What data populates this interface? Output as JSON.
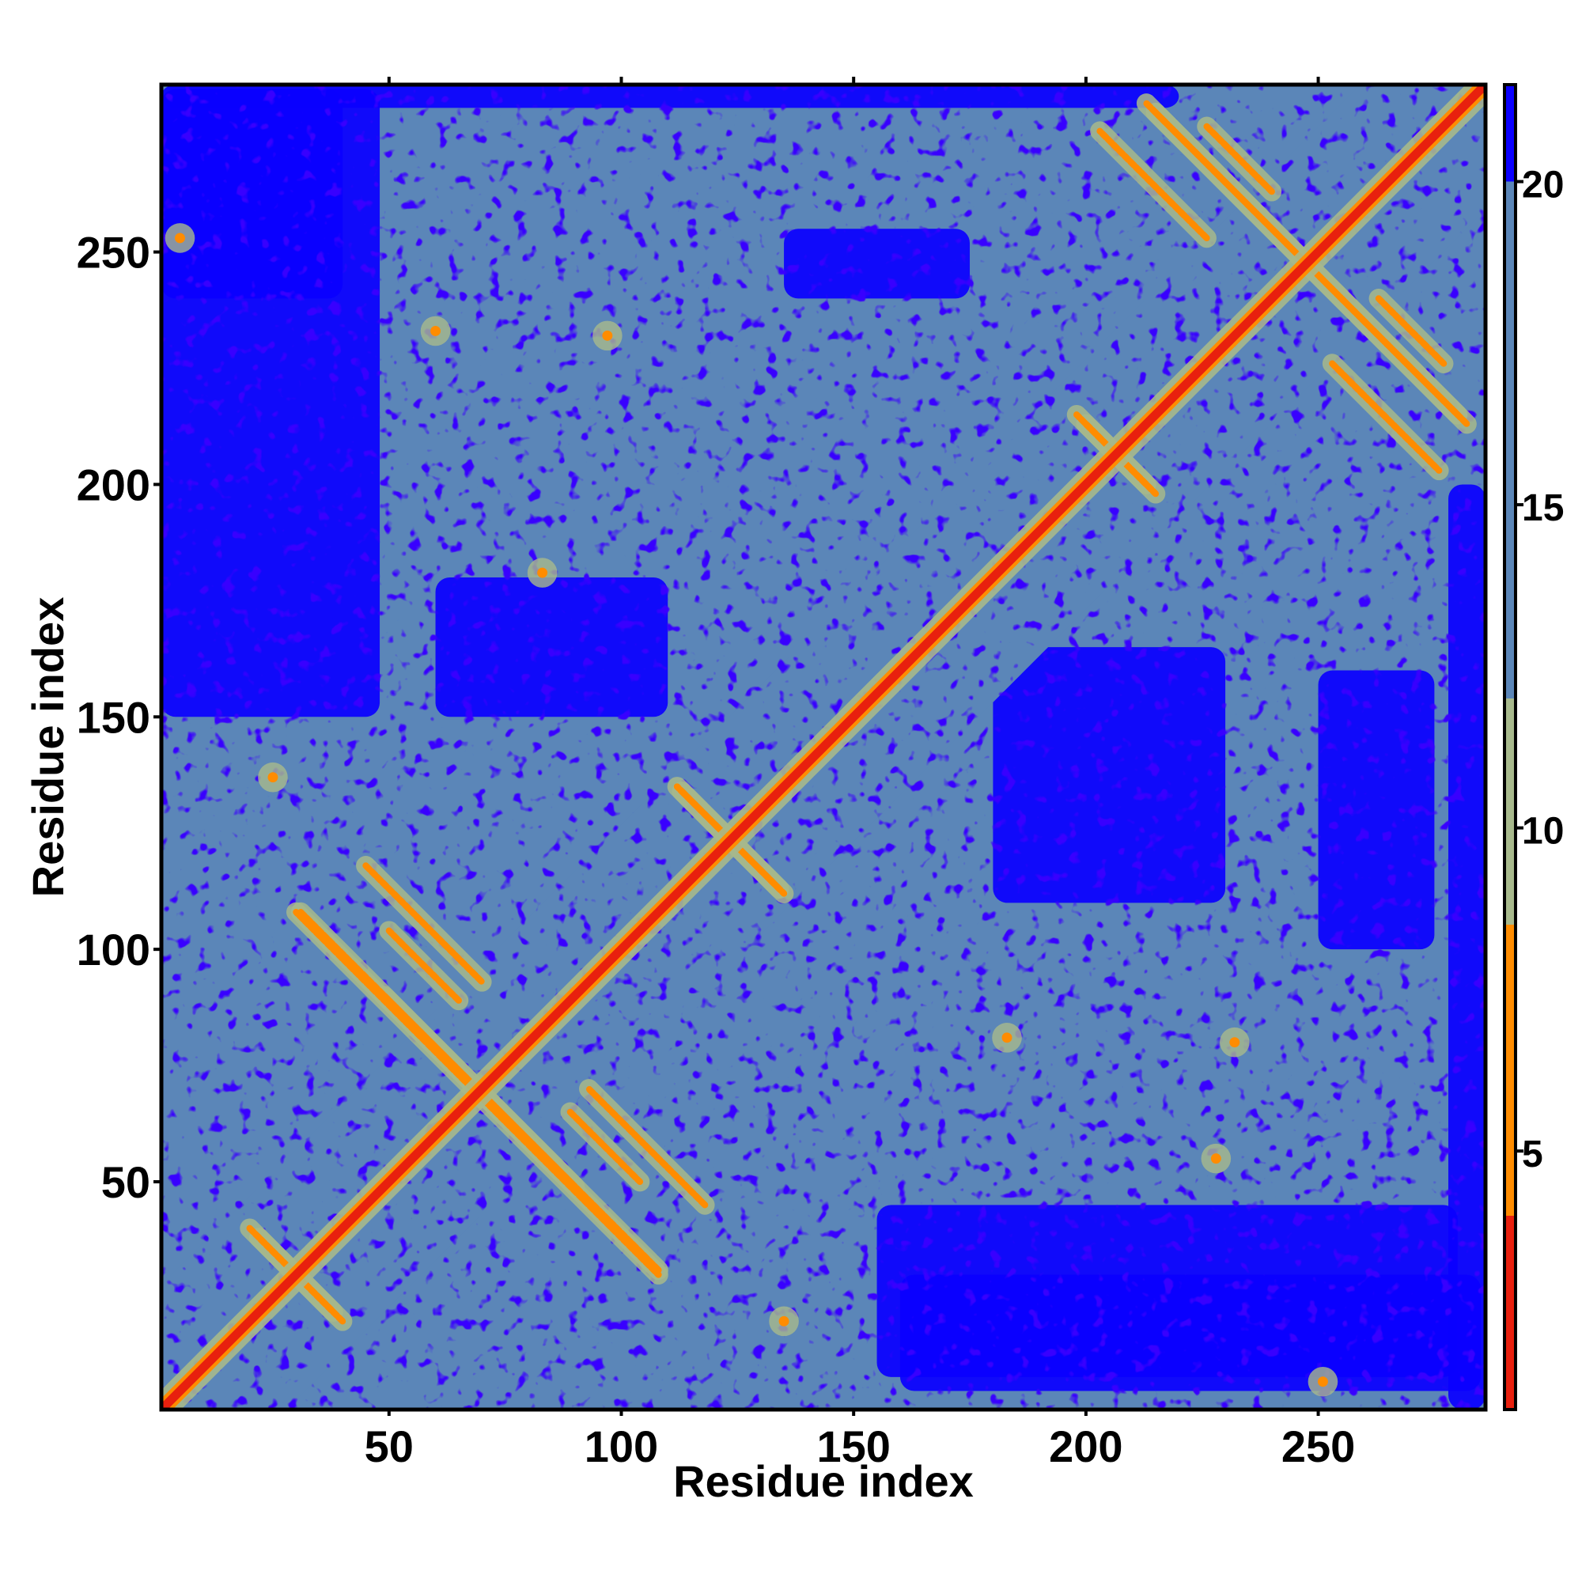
{
  "chart_data": {
    "type": "heatmap",
    "title": "",
    "xlabel": "Residue index",
    "ylabel": "Residue index",
    "n_residues": 286,
    "xlim": [
      1,
      286
    ],
    "ylim": [
      1,
      286
    ],
    "x_ticks": [
      50,
      100,
      150,
      200,
      250
    ],
    "y_ticks": [
      50,
      100,
      150,
      200,
      250
    ],
    "colorbar": {
      "ticks": [
        5,
        10,
        15,
        20
      ],
      "range": [
        1,
        21.5
      ],
      "bands": [
        {
          "from": 1,
          "to": 4,
          "color": "#e8200e"
        },
        {
          "from": 4,
          "to": 8.5,
          "color": "#ff8c00"
        },
        {
          "from": 8.5,
          "to": 12,
          "color": "#a7b98c"
        },
        {
          "from": 12,
          "to": 20,
          "color": "#5b86b8"
        },
        {
          "from": 20,
          "to": 21.5,
          "color": "#0a00ff"
        }
      ]
    },
    "background_color": "#0a00ff",
    "matrix_color": "#5b86b8",
    "diagonal_color": "#e8200e",
    "contact_color": "#ff8c00",
    "halo_color": "#a7b98c",
    "anti_diagonal_contacts": [
      {
        "i_start": 20,
        "i_end": 38,
        "sum": 60
      },
      {
        "i_start": 31,
        "i_end": 90,
        "sum": 139
      },
      {
        "i_start": 45,
        "i_end": 70,
        "sum": 163
      },
      {
        "i_start": 68,
        "i_end": 108,
        "sum": 138
      },
      {
        "i_start": 89,
        "i_end": 104,
        "sum": 154
      },
      {
        "i_start": 113,
        "i_end": 135,
        "sum": 247
      },
      {
        "i_start": 200,
        "i_end": 215,
        "sum": 413
      },
      {
        "i_start": 215,
        "i_end": 282,
        "sum": 495
      },
      {
        "i_start": 226,
        "i_end": 240,
        "sum": 503
      },
      {
        "i_start": 253,
        "i_end": 276,
        "sum": 479
      }
    ],
    "point_contacts": [
      {
        "i": 5,
        "j": 253
      },
      {
        "i": 25,
        "j": 137
      },
      {
        "i": 60,
        "j": 233
      },
      {
        "i": 83,
        "j": 181
      },
      {
        "i": 97,
        "j": 232
      },
      {
        "i": 135,
        "j": 20
      },
      {
        "i": 183,
        "j": 81
      },
      {
        "i": 232,
        "j": 80
      },
      {
        "i": 228,
        "j": 55
      },
      {
        "i": 251,
        "j": 7
      }
    ],
    "far_regions": [
      {
        "x": [
          1,
          48
        ],
        "y": [
          150,
          285
        ]
      },
      {
        "x": [
          1,
          40
        ],
        "y": [
          240,
          285
        ]
      },
      {
        "x": [
          155,
          280
        ],
        "y": [
          8,
          45
        ]
      },
      {
        "x": [
          160,
          285
        ],
        "y": [
          5,
          30
        ]
      },
      {
        "x": [
          180,
          230
        ],
        "y": [
          110,
          165
        ]
      },
      {
        "x": [
          60,
          110
        ],
        "y": [
          150,
          180
        ]
      },
      {
        "x": [
          135,
          175
        ],
        "y": [
          240,
          255
        ]
      },
      {
        "x": [
          278,
          286
        ],
        "y": [
          1,
          200
        ]
      },
      {
        "x": [
          1,
          220
        ],
        "y": [
          281,
          286
        ]
      },
      {
        "x": [
          250,
          275
        ],
        "y": [
          100,
          160
        ]
      }
    ]
  }
}
